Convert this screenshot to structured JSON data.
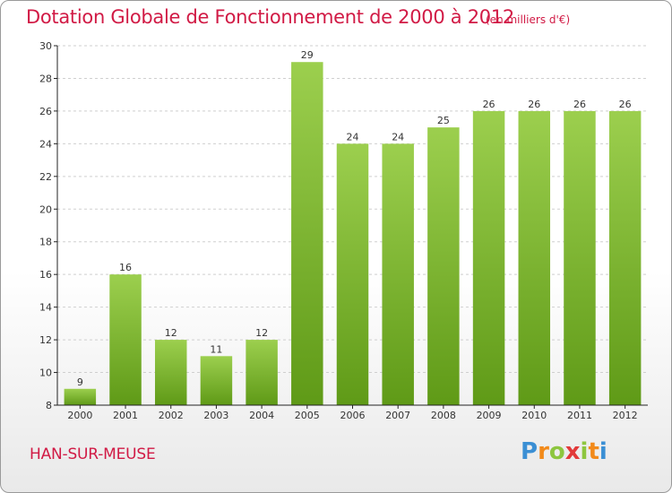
{
  "header": {
    "title": "Dotation Globale de Fonctionnement de 2000 à 2012",
    "unit": "(en milliers d'€)"
  },
  "footer": {
    "commune": "HAN-SUR-MEUSE",
    "logo": "Proxiti"
  },
  "colors": {
    "title": "#d11a45",
    "bar_top": "#9ccf4e",
    "bar_bottom": "#5f9a17",
    "axis": "#222222",
    "grid": "#cfcfcf"
  },
  "chart_data": {
    "type": "bar",
    "categories": [
      "2000",
      "2001",
      "2002",
      "2003",
      "2004",
      "2005",
      "2006",
      "2007",
      "2008",
      "2009",
      "2010",
      "2011",
      "2012"
    ],
    "values": [
      9,
      16,
      12,
      11,
      12,
      29,
      24,
      24,
      25,
      26,
      26,
      26,
      26
    ],
    "title": "Dotation Globale de Fonctionnement de 2000 à 2012",
    "subtitle": "(en milliers d'€)",
    "xlabel": "",
    "ylabel": "",
    "ylim": [
      8,
      30
    ],
    "yticks": [
      8,
      10,
      12,
      14,
      16,
      18,
      20,
      22,
      24,
      26,
      28,
      30
    ],
    "grid": true,
    "data_labels": true,
    "legend": "none"
  }
}
